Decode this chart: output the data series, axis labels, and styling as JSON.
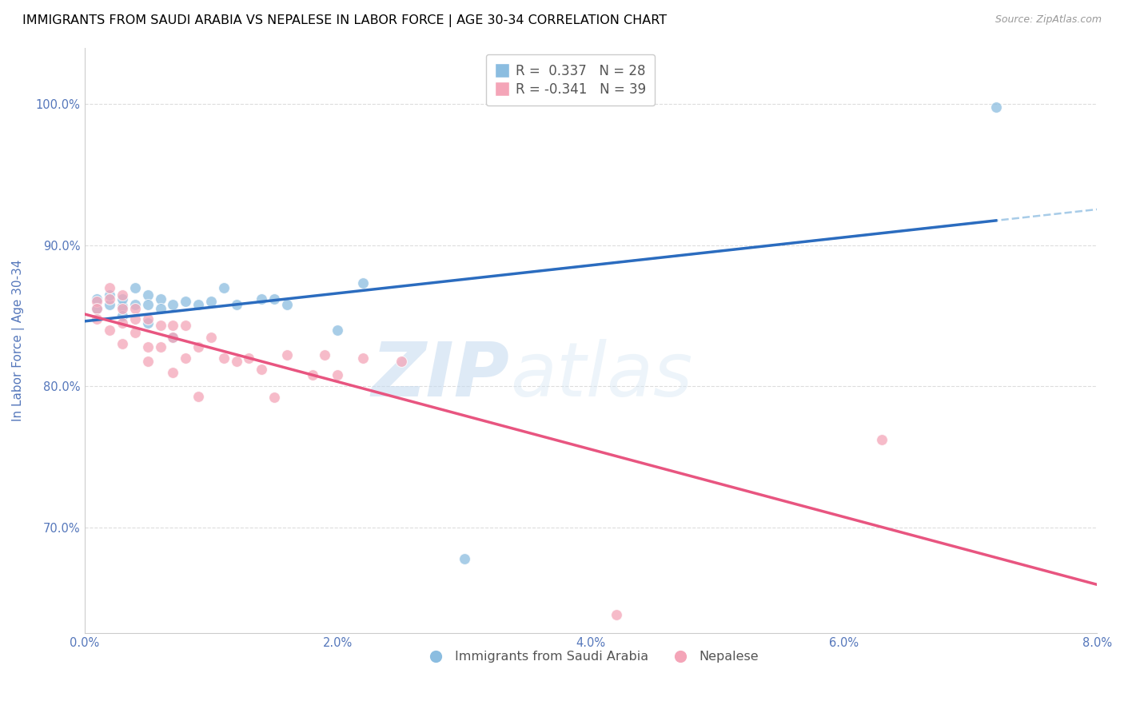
{
  "title": "IMMIGRANTS FROM SAUDI ARABIA VS NEPALESE IN LABOR FORCE | AGE 30-34 CORRELATION CHART",
  "source": "Source: ZipAtlas.com",
  "ylabel": "In Labor Force | Age 30-34",
  "xlim": [
    0.0,
    0.08
  ],
  "ylim": [
    0.625,
    1.04
  ],
  "yticks": [
    0.7,
    0.8,
    0.9,
    1.0
  ],
  "ytick_labels": [
    "70.0%",
    "80.0%",
    "90.0%",
    "100.0%"
  ],
  "xticks": [
    0.0,
    0.02,
    0.04,
    0.06,
    0.08
  ],
  "xtick_labels": [
    "0.0%",
    "2.0%",
    "4.0%",
    "6.0%",
    "8.0%"
  ],
  "blue_scatter_x": [
    0.001,
    0.001,
    0.002,
    0.002,
    0.003,
    0.003,
    0.003,
    0.004,
    0.004,
    0.005,
    0.005,
    0.005,
    0.006,
    0.006,
    0.007,
    0.007,
    0.008,
    0.009,
    0.01,
    0.011,
    0.012,
    0.014,
    0.015,
    0.016,
    0.02,
    0.022,
    0.03,
    0.072
  ],
  "blue_scatter_y": [
    0.855,
    0.862,
    0.858,
    0.865,
    0.857,
    0.862,
    0.85,
    0.87,
    0.858,
    0.865,
    0.858,
    0.845,
    0.862,
    0.855,
    0.858,
    0.835,
    0.86,
    0.858,
    0.86,
    0.87,
    0.858,
    0.862,
    0.862,
    0.858,
    0.84,
    0.873,
    0.678,
    0.998
  ],
  "pink_scatter_x": [
    0.001,
    0.001,
    0.001,
    0.002,
    0.002,
    0.002,
    0.003,
    0.003,
    0.003,
    0.003,
    0.004,
    0.004,
    0.004,
    0.005,
    0.005,
    0.005,
    0.006,
    0.006,
    0.007,
    0.007,
    0.007,
    0.008,
    0.008,
    0.009,
    0.009,
    0.01,
    0.011,
    0.012,
    0.013,
    0.014,
    0.015,
    0.016,
    0.018,
    0.019,
    0.02,
    0.022,
    0.025,
    0.063,
    0.042
  ],
  "pink_scatter_y": [
    0.86,
    0.855,
    0.848,
    0.87,
    0.862,
    0.84,
    0.865,
    0.855,
    0.845,
    0.83,
    0.855,
    0.848,
    0.838,
    0.848,
    0.828,
    0.818,
    0.843,
    0.828,
    0.843,
    0.835,
    0.81,
    0.843,
    0.82,
    0.828,
    0.793,
    0.835,
    0.82,
    0.818,
    0.82,
    0.812,
    0.792,
    0.822,
    0.808,
    0.822,
    0.808,
    0.82,
    0.818,
    0.762,
    0.638
  ],
  "blue_color": "#8bbde0",
  "pink_color": "#f4a5b8",
  "blue_line_color": "#2b6cbf",
  "pink_line_color": "#e85580",
  "blue_dashed_color": "#a8cce8",
  "legend_R_blue": "0.337",
  "legend_N_blue": "28",
  "legend_R_pink": "-0.341",
  "legend_N_pink": "39",
  "axis_color": "#5577bb",
  "grid_color": "#dddddd",
  "title_fontsize": 11.5,
  "axis_label_fontsize": 11,
  "tick_fontsize": 10.5,
  "marker_size": 100,
  "watermark_text": "ZIP",
  "watermark_text2": "atlas"
}
